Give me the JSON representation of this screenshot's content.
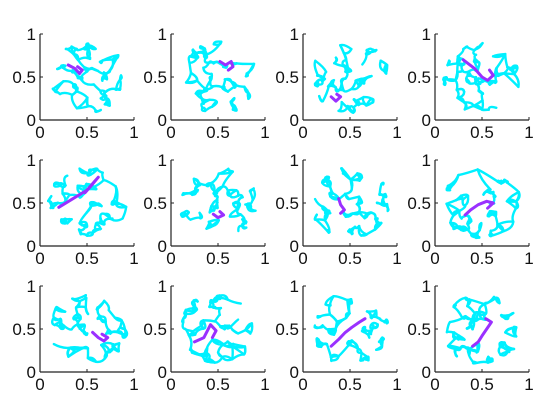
{
  "figure": {
    "rows": 3,
    "cols": 4
  },
  "colors": {
    "network": "#00f0ff",
    "highlight": "#9a30ff",
    "axis": "#222222",
    "background": "#ffffff"
  },
  "chart_data": [
    {
      "type": "scatter",
      "panel": 1,
      "xlim": [
        0,
        1
      ],
      "ylim": [
        0,
        1
      ],
      "xticks": [
        "0",
        "0.5",
        "1"
      ],
      "yticks": [
        "0",
        "0.5",
        "1"
      ],
      "grid": false,
      "highlight_path": [
        [
          0.3,
          0.64
        ],
        [
          0.37,
          0.6
        ],
        [
          0.42,
          0.54
        ],
        [
          0.45,
          0.58
        ],
        [
          0.4,
          0.62
        ]
      ]
    },
    {
      "type": "scatter",
      "panel": 2,
      "xlim": [
        0,
        1
      ],
      "ylim": [
        0,
        1
      ],
      "xticks": [
        "0",
        "0.5",
        "1"
      ],
      "yticks": [
        "0",
        "0.5",
        "1"
      ],
      "grid": false,
      "highlight_path": [
        [
          0.52,
          0.68
        ],
        [
          0.58,
          0.64
        ],
        [
          0.64,
          0.68
        ],
        [
          0.66,
          0.62
        ],
        [
          0.61,
          0.58
        ]
      ]
    },
    {
      "type": "scatter",
      "panel": 3,
      "xlim": [
        0,
        1
      ],
      "ylim": [
        0,
        1
      ],
      "xticks": [
        "0",
        "0.5",
        "1"
      ],
      "yticks": [
        "0",
        "0.5",
        "1"
      ],
      "grid": false,
      "highlight_path": [
        [
          0.3,
          0.27
        ],
        [
          0.35,
          0.22
        ],
        [
          0.4,
          0.27
        ],
        [
          0.36,
          0.3
        ]
      ]
    },
    {
      "type": "scatter",
      "panel": 4,
      "xlim": [
        0,
        1
      ],
      "ylim": [
        0,
        1
      ],
      "xticks": [
        "0",
        "0.5",
        "1"
      ],
      "yticks": [
        "0",
        "0.5",
        "1"
      ],
      "grid": false,
      "highlight_path": [
        [
          0.3,
          0.7
        ],
        [
          0.42,
          0.6
        ],
        [
          0.5,
          0.5
        ],
        [
          0.56,
          0.46
        ],
        [
          0.62,
          0.52
        ],
        [
          0.58,
          0.58
        ]
      ]
    },
    {
      "type": "scatter",
      "panel": 5,
      "xlim": [
        0,
        1
      ],
      "ylim": [
        0,
        1
      ],
      "xticks": [
        "0",
        "0.5",
        "1"
      ],
      "yticks": [
        "0",
        "0.5",
        "1"
      ],
      "grid": false,
      "highlight_path": [
        [
          0.2,
          0.45
        ],
        [
          0.35,
          0.55
        ],
        [
          0.5,
          0.65
        ],
        [
          0.58,
          0.75
        ],
        [
          0.62,
          0.8
        ],
        [
          0.56,
          0.72
        ],
        [
          0.48,
          0.62
        ]
      ]
    },
    {
      "type": "scatter",
      "panel": 6,
      "xlim": [
        0,
        1
      ],
      "ylim": [
        0,
        1
      ],
      "xticks": [
        "0",
        "0.5",
        "1"
      ],
      "yticks": [
        "0",
        "0.5",
        "1"
      ],
      "grid": false,
      "highlight_path": [
        [
          0.45,
          0.37
        ],
        [
          0.5,
          0.33
        ],
        [
          0.56,
          0.36
        ],
        [
          0.52,
          0.4
        ]
      ]
    },
    {
      "type": "scatter",
      "panel": 7,
      "xlim": [
        0,
        1
      ],
      "ylim": [
        0,
        1
      ],
      "xticks": [
        "0",
        "0.5",
        "1"
      ],
      "yticks": [
        "0",
        "0.5",
        "1"
      ],
      "grid": false,
      "highlight_path": [
        [
          0.38,
          0.55
        ],
        [
          0.4,
          0.48
        ],
        [
          0.44,
          0.42
        ],
        [
          0.4,
          0.38
        ]
      ]
    },
    {
      "type": "scatter",
      "panel": 8,
      "xlim": [
        0,
        1
      ],
      "ylim": [
        0,
        1
      ],
      "xticks": [
        "0",
        "0.5",
        "1"
      ],
      "yticks": [
        "0",
        "0.5",
        "1"
      ],
      "grid": false,
      "highlight_path": [
        [
          0.32,
          0.36
        ],
        [
          0.38,
          0.42
        ],
        [
          0.46,
          0.48
        ],
        [
          0.55,
          0.52
        ],
        [
          0.62,
          0.5
        ],
        [
          0.56,
          0.44
        ]
      ]
    },
    {
      "type": "scatter",
      "panel": 9,
      "xlim": [
        0,
        1
      ],
      "ylim": [
        0,
        1
      ],
      "xticks": [
        "0",
        "0.5",
        "1"
      ],
      "yticks": [
        "0",
        "0.5",
        "1"
      ],
      "grid": false,
      "highlight_path": [
        [
          0.56,
          0.46
        ],
        [
          0.62,
          0.4
        ],
        [
          0.68,
          0.36
        ],
        [
          0.72,
          0.4
        ],
        [
          0.66,
          0.44
        ]
      ]
    },
    {
      "type": "scatter",
      "panel": 10,
      "xlim": [
        0,
        1
      ],
      "ylim": [
        0,
        1
      ],
      "xticks": [
        "0",
        "0.5",
        "1"
      ],
      "yticks": [
        "0",
        "0.5",
        "1"
      ],
      "grid": false,
      "highlight_path": [
        [
          0.25,
          0.35
        ],
        [
          0.35,
          0.4
        ],
        [
          0.42,
          0.55
        ],
        [
          0.48,
          0.48
        ],
        [
          0.44,
          0.4
        ]
      ]
    },
    {
      "type": "scatter",
      "panel": 11,
      "xlim": [
        0,
        1
      ],
      "ylim": [
        0,
        1
      ],
      "xticks": [
        "0",
        "0.5",
        "1"
      ],
      "yticks": [
        "0",
        "0.5",
        "1"
      ],
      "grid": false,
      "highlight_path": [
        [
          0.3,
          0.3
        ],
        [
          0.38,
          0.38
        ],
        [
          0.45,
          0.46
        ],
        [
          0.52,
          0.52
        ],
        [
          0.6,
          0.58
        ],
        [
          0.66,
          0.62
        ]
      ]
    },
    {
      "type": "scatter",
      "panel": 12,
      "xlim": [
        0,
        1
      ],
      "ylim": [
        0,
        1
      ],
      "xticks": [
        "0",
        "0.5",
        "1"
      ],
      "yticks": [
        "0",
        "0.5",
        "1"
      ],
      "grid": false,
      "highlight_path": [
        [
          0.4,
          0.3
        ],
        [
          0.46,
          0.35
        ],
        [
          0.5,
          0.42
        ],
        [
          0.55,
          0.5
        ],
        [
          0.6,
          0.58
        ],
        [
          0.54,
          0.62
        ]
      ]
    }
  ]
}
